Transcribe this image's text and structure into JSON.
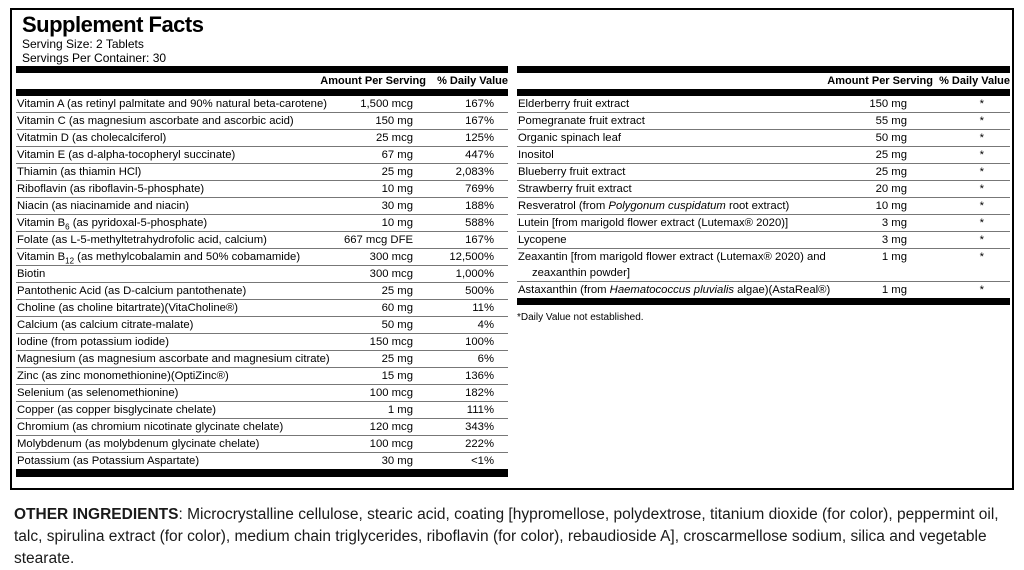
{
  "panel": {
    "title": "Supplement Facts",
    "serving_size": "Serving Size: 2 Tablets",
    "servings_per_container": "Servings Per Container: 30",
    "col_headers": {
      "amount": "Amount Per Serving",
      "dv": "% Daily Value"
    },
    "colors": {
      "bar": "#000000",
      "separator": "#777777",
      "text": "#000000"
    }
  },
  "left_table": {
    "rows": [
      {
        "name": "Vitamin A (as retinyl palmitate and 90% natural beta-carotene)",
        "amount": "1,500 mcg",
        "dv": "167%"
      },
      {
        "name": "Vitamin C (as magnesium ascorbate and ascorbic acid)",
        "amount": "150 mg",
        "dv": "167%"
      },
      {
        "name": "Vitatmin D (as cholecalciferol)",
        "amount": "25 mcg",
        "dv": "125%"
      },
      {
        "name": "Vitamin E (as d-alpha-tocopheryl succinate)",
        "amount": "67 mg",
        "dv": "447%"
      },
      {
        "name": "Thiamin (as thiamin HCl)",
        "amount": "25 mg",
        "dv": "2,083%"
      },
      {
        "name": "Riboflavin (as riboflavin-5-phosphate)",
        "amount": "10 mg",
        "dv": "769%"
      },
      {
        "name": "Niacin (as niacinamide and niacin)",
        "amount": "30 mg",
        "dv": "188%"
      },
      {
        "name": [
          "Vitamin B",
          {
            "sub": "6"
          },
          " (as pyridoxal-5-phosphate)"
        ],
        "amount": "10 mg",
        "dv": "588%"
      },
      {
        "name": "Folate (as L-5-methyltetrahydrofolic acid, calcium)",
        "amount": "667 mcg DFE",
        "dv": "167%"
      },
      {
        "name": [
          "Vitamin B",
          {
            "sub": "12"
          },
          " (as methylcobalamin and 50% cobamamide)"
        ],
        "amount": "300 mcg",
        "dv": "12,500%"
      },
      {
        "name": "Biotin",
        "amount": "300 mcg",
        "dv": "1,000%"
      },
      {
        "name": "Pantothenic Acid (as D-calcium pantothenate)",
        "amount": "25 mg",
        "dv": "500%"
      },
      {
        "name": "Choline (as choline bitartrate)(VitaCholine®)",
        "amount": "60 mg",
        "dv": "11%"
      },
      {
        "name": "Calcium (as calcium citrate-malate)",
        "amount": "50 mg",
        "dv": "4%"
      },
      {
        "name": "Iodine (from potassium iodide)",
        "amount": "150 mcg",
        "dv": "100%"
      },
      {
        "name": "Magnesium (as magnesium ascorbate and magnesium citrate)",
        "amount": "25 mg",
        "dv": "6%"
      },
      {
        "name": "Zinc (as zinc monomethionine)(OptiZinc®)",
        "amount": "15 mg",
        "dv": "136%"
      },
      {
        "name": "Selenium (as selenomethionine)",
        "amount": "100 mcg",
        "dv": "182%"
      },
      {
        "name": "Copper (as copper bisglycinate chelate)",
        "amount": "1 mg",
        "dv": "111%"
      },
      {
        "name": "Chromium (as chromium nicotinate glycinate chelate)",
        "amount": "120 mcg",
        "dv": "343%"
      },
      {
        "name": "Molybdenum (as molybdenum glycinate chelate)",
        "amount": "100 mcg",
        "dv": "222%"
      },
      {
        "name": "Potassium (as Potassium Aspartate)",
        "amount": "30 mg",
        "dv": "<1%"
      }
    ]
  },
  "right_table": {
    "rows": [
      {
        "name": "Elderberry fruit extract",
        "amount": "150 mg",
        "dv": "*"
      },
      {
        "name": "Pomegranate fruit extract",
        "amount": "55 mg",
        "dv": "*"
      },
      {
        "name": "Organic spinach leaf",
        "amount": "50 mg",
        "dv": "*"
      },
      {
        "name": "Inositol",
        "amount": "25 mg",
        "dv": "*"
      },
      {
        "name": "Blueberry fruit extract",
        "amount": "25 mg",
        "dv": "*"
      },
      {
        "name": "Strawberry fruit extract",
        "amount": "20 mg",
        "dv": "*"
      },
      {
        "name": [
          "Resveratrol (from ",
          {
            "i": "Polygonum cuspidatum"
          },
          " root extract)"
        ],
        "amount": "10 mg",
        "dv": "*"
      },
      {
        "name": "Lutein [from marigold flower extract (Lutemax® 2020)]",
        "amount": "3 mg",
        "dv": "*"
      },
      {
        "name": "Lycopene",
        "amount": "3 mg",
        "dv": "*"
      },
      {
        "name": [
          "Zeaxantin [from marigold flower extract (Lutemax® 2020) and",
          {
            "line2": "zeaxanthin powder]"
          }
        ],
        "amount": "1 mg",
        "dv": "*"
      },
      {
        "name": [
          "Astaxanthin (from ",
          {
            "i": "Haematococcus pluvialis"
          },
          " algae)(AstaReal®)"
        ],
        "amount": "1 mg",
        "dv": "*"
      }
    ],
    "footnote": "*Daily Value not established."
  },
  "other_ingredients": {
    "label": "OTHER INGREDIENTS",
    "text": ": Microcrystalline cellulose, stearic acid, coating [hypromellose, polydextrose, titanium dioxide (for color), peppermint oil, talc, spirulina extract (for color), medium chain triglycerides, riboflavin (for color), rebaudioside A], croscarmellose sodium, silica and vegetable stearate."
  }
}
